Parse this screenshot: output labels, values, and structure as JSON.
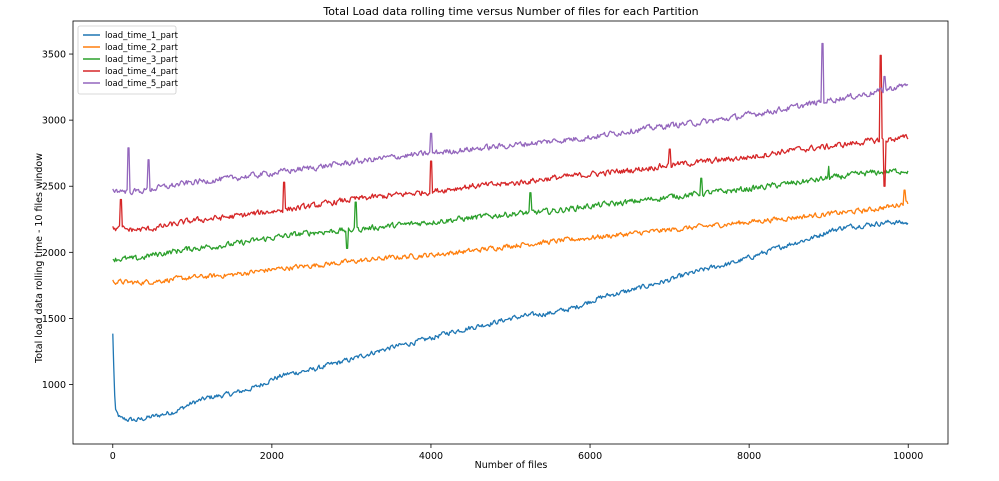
{
  "chart_data": {
    "type": "line",
    "title": "Total Load data rolling time versus Number of files for each Partition",
    "xlabel": "Number of files",
    "ylabel": "Total load data rolling time - 10 files window",
    "xlim": [
      -500,
      10500
    ],
    "ylim": [
      550,
      3750
    ],
    "x_ticks": [
      0,
      2000,
      4000,
      6000,
      8000,
      10000
    ],
    "y_ticks": [
      1000,
      1500,
      2000,
      2500,
      3000,
      3500
    ],
    "legend_position": "upper-left",
    "grid": false,
    "series": [
      {
        "name": "load_time_1_part",
        "color": "#1f77b4",
        "points": [
          [
            0,
            1380
          ],
          [
            30,
            800
          ],
          [
            100,
            740
          ],
          [
            300,
            730
          ],
          [
            600,
            770
          ],
          [
            800,
            800
          ],
          [
            1000,
            860
          ],
          [
            1200,
            900
          ],
          [
            1500,
            930
          ],
          [
            1800,
            980
          ],
          [
            2000,
            1040
          ],
          [
            2200,
            1080
          ],
          [
            2500,
            1110
          ],
          [
            2800,
            1160
          ],
          [
            3000,
            1190
          ],
          [
            3200,
            1230
          ],
          [
            3500,
            1280
          ],
          [
            3800,
            1320
          ],
          [
            4000,
            1350
          ],
          [
            4200,
            1390
          ],
          [
            4500,
            1430
          ],
          [
            4800,
            1470
          ],
          [
            5000,
            1500
          ],
          [
            5200,
            1520
          ],
          [
            5500,
            1540
          ],
          [
            5800,
            1580
          ],
          [
            6000,
            1630
          ],
          [
            6200,
            1670
          ],
          [
            6500,
            1710
          ],
          [
            6800,
            1760
          ],
          [
            7000,
            1790
          ],
          [
            7200,
            1830
          ],
          [
            7500,
            1880
          ],
          [
            7800,
            1920
          ],
          [
            8000,
            1960
          ],
          [
            8200,
            2000
          ],
          [
            8500,
            2060
          ],
          [
            8800,
            2110
          ],
          [
            9000,
            2160
          ],
          [
            9200,
            2190
          ],
          [
            9500,
            2210
          ],
          [
            9800,
            2230
          ],
          [
            10000,
            2220
          ]
        ],
        "noise": 30,
        "spikes": []
      },
      {
        "name": "load_time_2_part",
        "color": "#ff7f0e",
        "points": [
          [
            0,
            1780
          ],
          [
            300,
            1770
          ],
          [
            500,
            1780
          ],
          [
            1000,
            1810
          ],
          [
            1500,
            1830
          ],
          [
            2000,
            1870
          ],
          [
            2500,
            1900
          ],
          [
            3000,
            1930
          ],
          [
            3500,
            1960
          ],
          [
            4000,
            1980
          ],
          [
            4500,
            2010
          ],
          [
            5000,
            2050
          ],
          [
            5500,
            2080
          ],
          [
            6000,
            2110
          ],
          [
            6500,
            2140
          ],
          [
            7000,
            2170
          ],
          [
            7500,
            2200
          ],
          [
            8000,
            2230
          ],
          [
            8500,
            2260
          ],
          [
            9000,
            2290
          ],
          [
            9500,
            2320
          ],
          [
            9800,
            2350
          ],
          [
            10000,
            2380
          ]
        ],
        "noise": 30,
        "spikes": [
          [
            9950,
            2470
          ]
        ]
      },
      {
        "name": "load_time_3_part",
        "color": "#2ca02c",
        "points": [
          [
            0,
            1950
          ],
          [
            300,
            1950
          ],
          [
            500,
            1980
          ],
          [
            1000,
            2030
          ],
          [
            1500,
            2060
          ],
          [
            2000,
            2110
          ],
          [
            2500,
            2150
          ],
          [
            3000,
            2170
          ],
          [
            3500,
            2200
          ],
          [
            4000,
            2230
          ],
          [
            4500,
            2260
          ],
          [
            5000,
            2290
          ],
          [
            5500,
            2310
          ],
          [
            6000,
            2350
          ],
          [
            6500,
            2380
          ],
          [
            7000,
            2420
          ],
          [
            7500,
            2450
          ],
          [
            8000,
            2480
          ],
          [
            8500,
            2520
          ],
          [
            9000,
            2560
          ],
          [
            9500,
            2600
          ],
          [
            10000,
            2620
          ]
        ],
        "noise": 35,
        "spikes": [
          [
            2950,
            2030
          ],
          [
            3050,
            2380
          ],
          [
            5250,
            2450
          ],
          [
            7400,
            2560
          ],
          [
            9000,
            2650
          ]
        ]
      },
      {
        "name": "load_time_4_part",
        "color": "#d62728",
        "points": [
          [
            0,
            2180
          ],
          [
            300,
            2170
          ],
          [
            500,
            2180
          ],
          [
            1000,
            2240
          ],
          [
            1500,
            2270
          ],
          [
            2000,
            2310
          ],
          [
            2500,
            2350
          ],
          [
            3000,
            2400
          ],
          [
            3500,
            2430
          ],
          [
            4000,
            2460
          ],
          [
            4500,
            2500
          ],
          [
            5000,
            2520
          ],
          [
            5500,
            2560
          ],
          [
            6000,
            2590
          ],
          [
            6500,
            2620
          ],
          [
            7000,
            2660
          ],
          [
            7500,
            2690
          ],
          [
            8000,
            2720
          ],
          [
            8500,
            2770
          ],
          [
            9000,
            2800
          ],
          [
            9500,
            2840
          ],
          [
            10000,
            2870
          ]
        ],
        "noise": 35,
        "spikes": [
          [
            100,
            2400
          ],
          [
            2150,
            2530
          ],
          [
            4000,
            2690
          ],
          [
            7000,
            2780
          ],
          [
            9650,
            3490
          ],
          [
            9700,
            2500
          ]
        ]
      },
      {
        "name": "load_time_5_part",
        "color": "#9467bd",
        "points": [
          [
            0,
            2470
          ],
          [
            300,
            2460
          ],
          [
            500,
            2480
          ],
          [
            1000,
            2530
          ],
          [
            1500,
            2560
          ],
          [
            2000,
            2600
          ],
          [
            2500,
            2640
          ],
          [
            3000,
            2680
          ],
          [
            3500,
            2720
          ],
          [
            4000,
            2750
          ],
          [
            4500,
            2780
          ],
          [
            5000,
            2810
          ],
          [
            5500,
            2840
          ],
          [
            6000,
            2870
          ],
          [
            6500,
            2920
          ],
          [
            7000,
            2960
          ],
          [
            7500,
            2990
          ],
          [
            8000,
            3040
          ],
          [
            8500,
            3090
          ],
          [
            9000,
            3150
          ],
          [
            9500,
            3200
          ],
          [
            10000,
            3270
          ]
        ],
        "noise": 35,
        "spikes": [
          [
            200,
            2790
          ],
          [
            450,
            2700
          ],
          [
            4000,
            2900
          ],
          [
            8920,
            3580
          ],
          [
            9700,
            3330
          ]
        ]
      }
    ]
  }
}
